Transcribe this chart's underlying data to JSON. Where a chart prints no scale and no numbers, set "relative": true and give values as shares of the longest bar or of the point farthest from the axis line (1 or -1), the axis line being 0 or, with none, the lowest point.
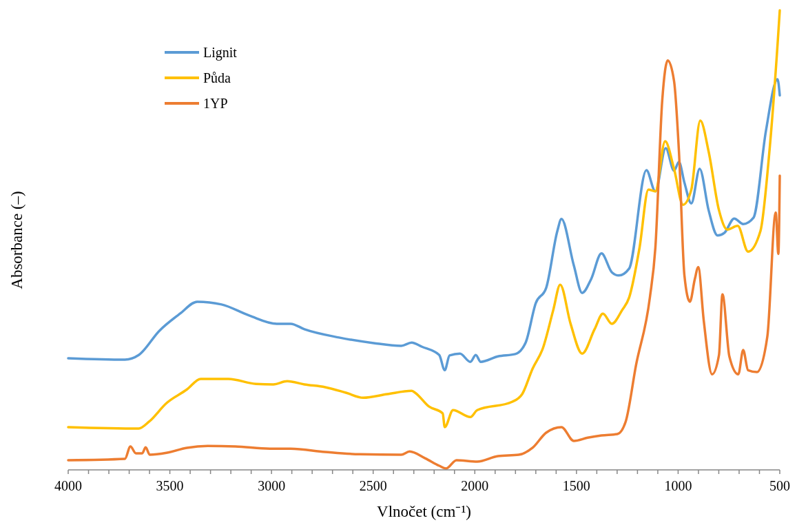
{
  "chart_data": {
    "type": "line",
    "relative": true,
    "xlabel": "Vlnočet (cm⁻¹)",
    "ylabel": "Absorbance (–)",
    "legend": "top left",
    "grid": false,
    "marker": "none",
    "line_style": "solid",
    "xlim": [
      4000,
      500
    ],
    "xticks": [
      4000,
      {
        "value": 3900,
        "label": null
      },
      {
        "value": 3800,
        "label": null
      },
      {
        "value": 3700,
        "label": null
      },
      {
        "value": 3600,
        "label": null
      },
      3500,
      {
        "value": 3400,
        "label": null
      },
      {
        "value": 3300,
        "label": null
      },
      {
        "value": 3200,
        "label": null
      },
      {
        "value": 3100,
        "label": null
      },
      3000,
      {
        "value": 2900,
        "label": null
      },
      {
        "value": 2800,
        "label": null
      },
      {
        "value": 2700,
        "label": null
      },
      {
        "value": 2600,
        "label": null
      },
      2500,
      {
        "value": 2400,
        "label": null
      },
      {
        "value": 2300,
        "label": null
      },
      {
        "value": 2200,
        "label": null
      },
      {
        "value": 2100,
        "label": null
      },
      2000,
      {
        "value": 1900,
        "label": null
      },
      {
        "value": 1800,
        "label": null
      },
      {
        "value": 1700,
        "label": null
      },
      {
        "value": 1600,
        "label": null
      },
      1500,
      {
        "value": 1400,
        "label": null
      },
      {
        "value": 1300,
        "label": null
      },
      {
        "value": 1200,
        "label": null
      },
      {
        "value": 1100,
        "label": null
      },
      1000,
      {
        "value": 900,
        "label": null
      },
      {
        "value": 800,
        "label": null
      },
      {
        "value": 700,
        "label": null
      },
      {
        "value": 600,
        "label": null
      },
      500
    ],
    "series": [
      {
        "name": "Lignit",
        "color": "#5b9bd5",
        "x": [
          4000,
          3721,
          3653,
          3551,
          3450,
          3365,
          3246,
          3110,
          2974,
          2906,
          2838,
          2668,
          2498,
          2362,
          2311,
          2260,
          2175,
          2148,
          2124,
          2073,
          2022,
          1995,
          1971,
          1886,
          1801,
          1750,
          1700,
          1649,
          1594,
          1574,
          1513,
          1472,
          1428,
          1377,
          1326,
          1292,
          1241,
          1156,
          1112,
          1061,
          1020,
          996,
          969,
          935,
          894,
          850,
          806,
          772,
          724,
          680,
          629,
          568,
          511,
          500
        ],
        "values": [
          0.243,
          0.24,
          0.25,
          0.303,
          0.34,
          0.366,
          0.36,
          0.336,
          0.318,
          0.318,
          0.306,
          0.288,
          0.276,
          0.27,
          0.277,
          0.268,
          0.25,
          0.217,
          0.249,
          0.253,
          0.235,
          0.25,
          0.235,
          0.247,
          0.252,
          0.277,
          0.363,
          0.396,
          0.52,
          0.546,
          0.445,
          0.385,
          0.415,
          0.471,
          0.43,
          0.423,
          0.438,
          0.652,
          0.606,
          0.7,
          0.651,
          0.67,
          0.625,
          0.58,
          0.655,
          0.565,
          0.51,
          0.516,
          0.547,
          0.535,
          0.549,
          0.738,
          0.85,
          0.815
        ]
      },
      {
        "name": "Půda",
        "color": "#ffc000",
        "x": [
          4000,
          3653,
          3602,
          3517,
          3416,
          3348,
          3212,
          3076,
          2991,
          2923,
          2838,
          2736,
          2634,
          2549,
          2430,
          2311,
          2294,
          2226,
          2158,
          2148,
          2107,
          2022,
          1988,
          1817,
          1767,
          1716,
          1665,
          1614,
          1580,
          1529,
          1472,
          1411,
          1370,
          1326,
          1275,
          1241,
          1190,
          1146,
          1112,
          1064,
          1020,
          976,
          935,
          891,
          850,
          799,
          758,
          707,
          656,
          595,
          554,
          510,
          500
        ],
        "values": [
          0.093,
          0.09,
          0.105,
          0.145,
          0.175,
          0.198,
          0.198,
          0.187,
          0.186,
          0.193,
          0.186,
          0.18,
          0.168,
          0.157,
          0.165,
          0.172,
          0.168,
          0.138,
          0.123,
          0.093,
          0.13,
          0.115,
          0.13,
          0.148,
          0.165,
          0.22,
          0.265,
          0.348,
          0.403,
          0.318,
          0.253,
          0.306,
          0.34,
          0.318,
          0.348,
          0.375,
          0.483,
          0.61,
          0.606,
          0.715,
          0.655,
          0.577,
          0.61,
          0.76,
          0.693,
          0.565,
          0.523,
          0.531,
          0.475,
          0.52,
          0.678,
          0.932,
          1
        ]
      },
      {
        "name": "1YP",
        "color": "#ed7d31",
        "x": [
          4000,
          3721,
          3694,
          3667,
          3636,
          3619,
          3599,
          3517,
          3416,
          3314,
          3178,
          3008,
          2906,
          2736,
          2566,
          2362,
          2321,
          2243,
          2175,
          2141,
          2090,
          1988,
          1886,
          1784,
          1716,
          1649,
          1574,
          1513,
          1445,
          1377,
          1299,
          1258,
          1207,
          1139,
          1112,
          1078,
          1051,
          1020,
          996,
          969,
          942,
          918,
          901,
          874,
          833,
          799,
          782,
          748,
          704,
          680,
          656,
          612,
          561,
          520,
          507,
          500
        ],
        "values": [
          0.021,
          0.024,
          0.051,
          0.036,
          0.036,
          0.049,
          0.033,
          0.037,
          0.048,
          0.052,
          0.051,
          0.046,
          0.046,
          0.039,
          0.034,
          0.033,
          0.04,
          0.025,
          0.009,
          0.003,
          0.021,
          0.018,
          0.03,
          0.033,
          0.048,
          0.081,
          0.093,
          0.063,
          0.07,
          0.075,
          0.078,
          0.105,
          0.228,
          0.375,
          0.483,
          0.805,
          0.891,
          0.846,
          0.693,
          0.423,
          0.366,
          0.415,
          0.441,
          0.325,
          0.208,
          0.25,
          0.382,
          0.247,
          0.208,
          0.261,
          0.217,
          0.213,
          0.291,
          0.56,
          0.47,
          0.64
        ]
      }
    ]
  }
}
